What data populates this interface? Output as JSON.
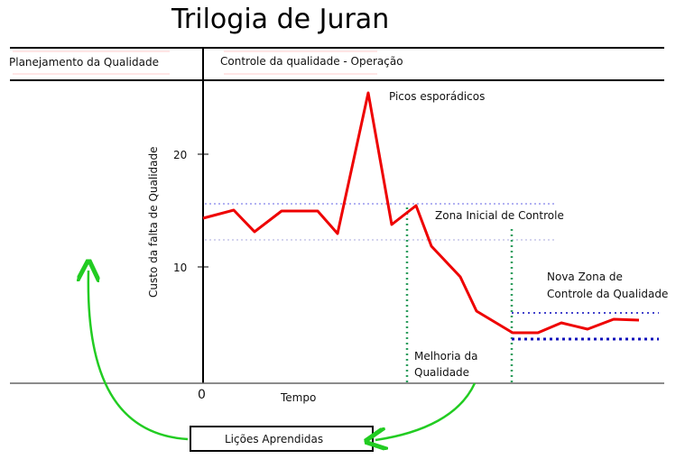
{
  "title": "Trilogia de Juran",
  "header": {
    "planning": "Planejamento da Qualidade",
    "control": "Controle da qualidade - Operação"
  },
  "axis": {
    "ylabel": "Custo da falta de Qualidade",
    "xlabel": "Tempo",
    "origin": "0",
    "ticks": [
      "20",
      "10"
    ]
  },
  "annotations": {
    "peaks": "Picos esporádicos",
    "initial_zone": "Zona Inicial de Controle",
    "new_zone_line1": "Nova Zona de",
    "new_zone_line2": "Controle da Qualidade",
    "improvement_line1": "Melhoria da",
    "improvement_line2": "Qualidade",
    "lessons": "Lições Aprendidas"
  },
  "colors": {
    "cost_line": "#ee0000",
    "initial_zone_limits": "#9999ee",
    "new_zone_limits": "#1111bb",
    "improvement_markers": "#2e9e5e",
    "feedback_arrows": "#22cc22"
  }
}
